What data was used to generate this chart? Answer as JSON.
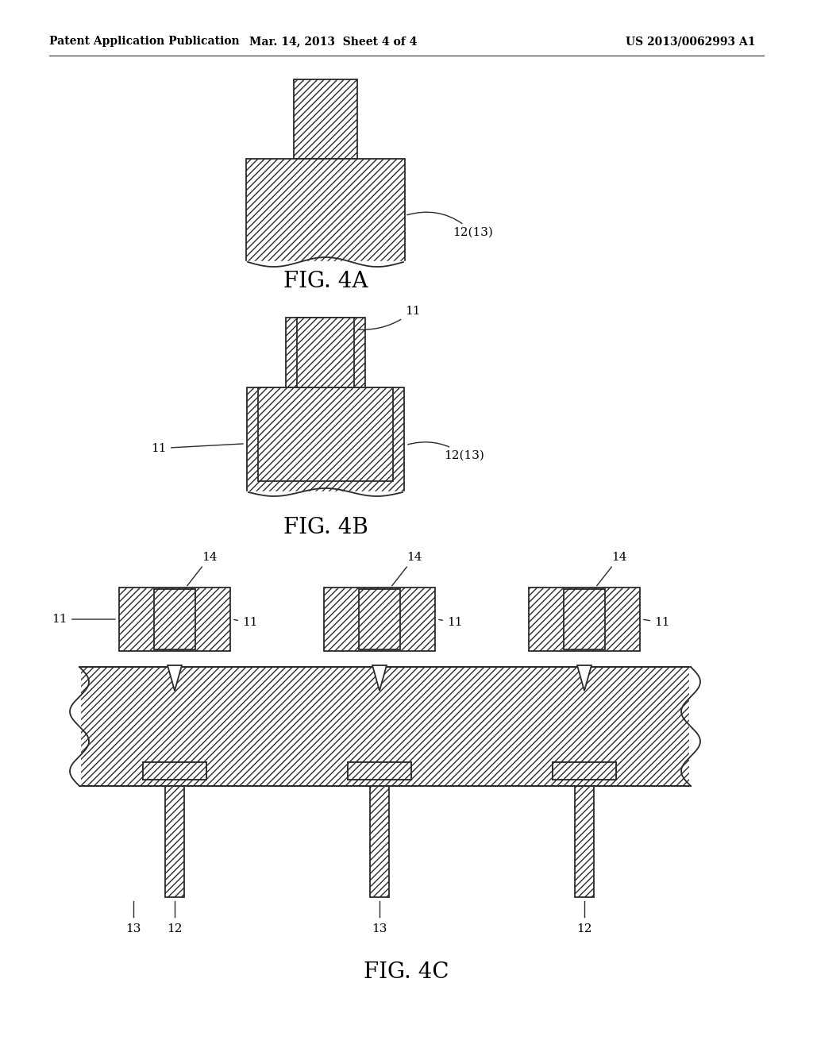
{
  "background_color": "#ffffff",
  "header_left": "Patent Application Publication",
  "header_center": "Mar. 14, 2013  Sheet 4 of 4",
  "header_right": "US 2013/0062993 A1",
  "fig4a_label": "FIG. 4A",
  "fig4b_label": "FIG. 4B",
  "fig4c_label": "FIG. 4C",
  "hatch_pattern": "////",
  "line_color": "#2a2a2a",
  "fill_color": "#ffffff",
  "lw": 1.3
}
